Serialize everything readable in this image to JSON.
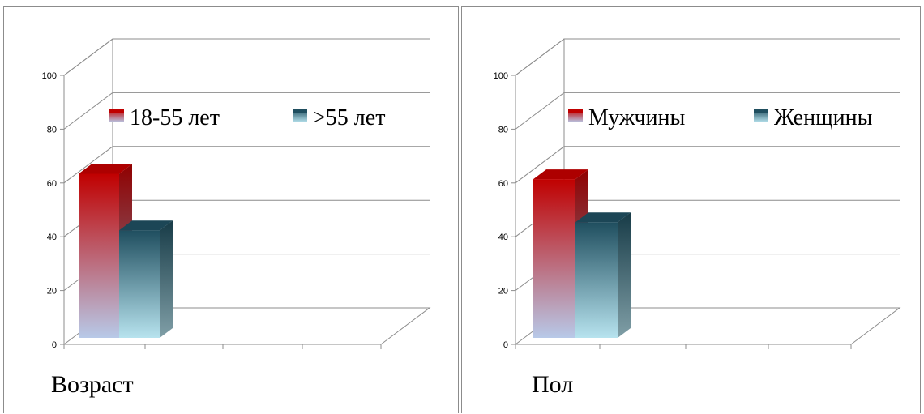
{
  "chart_data": [
    {
      "type": "bar",
      "style": "3d-clustered-column",
      "xlabel": "Возраст",
      "categories": [
        ""
      ],
      "series": [
        {
          "name": "18-55 лет",
          "values": [
            61
          ],
          "color": "#c00000",
          "gradient_end": "#b8c9e8"
        },
        {
          "name": ">55 лет",
          "values": [
            40
          ],
          "color": "#1f4e5f",
          "gradient_end": "#b7e3ee"
        }
      ],
      "ylim": [
        0,
        100
      ],
      "yticks": [
        "0",
        "20",
        "40",
        "60",
        "80",
        "100"
      ],
      "grid": true,
      "legend": "top"
    },
    {
      "type": "bar",
      "style": "3d-clustered-column",
      "xlabel": "Пол",
      "categories": [
        ""
      ],
      "series": [
        {
          "name": "Мужчины",
          "values": [
            59
          ],
          "color": "#c00000",
          "gradient_end": "#b8c9e8"
        },
        {
          "name": "Женщины",
          "values": [
            43
          ],
          "color": "#1f4e5f",
          "gradient_end": "#b7e3ee"
        }
      ],
      "ylim": [
        0,
        100
      ],
      "yticks": [
        "0",
        "20",
        "40",
        "60",
        "80",
        "100"
      ],
      "grid": true,
      "legend": "top"
    }
  ]
}
